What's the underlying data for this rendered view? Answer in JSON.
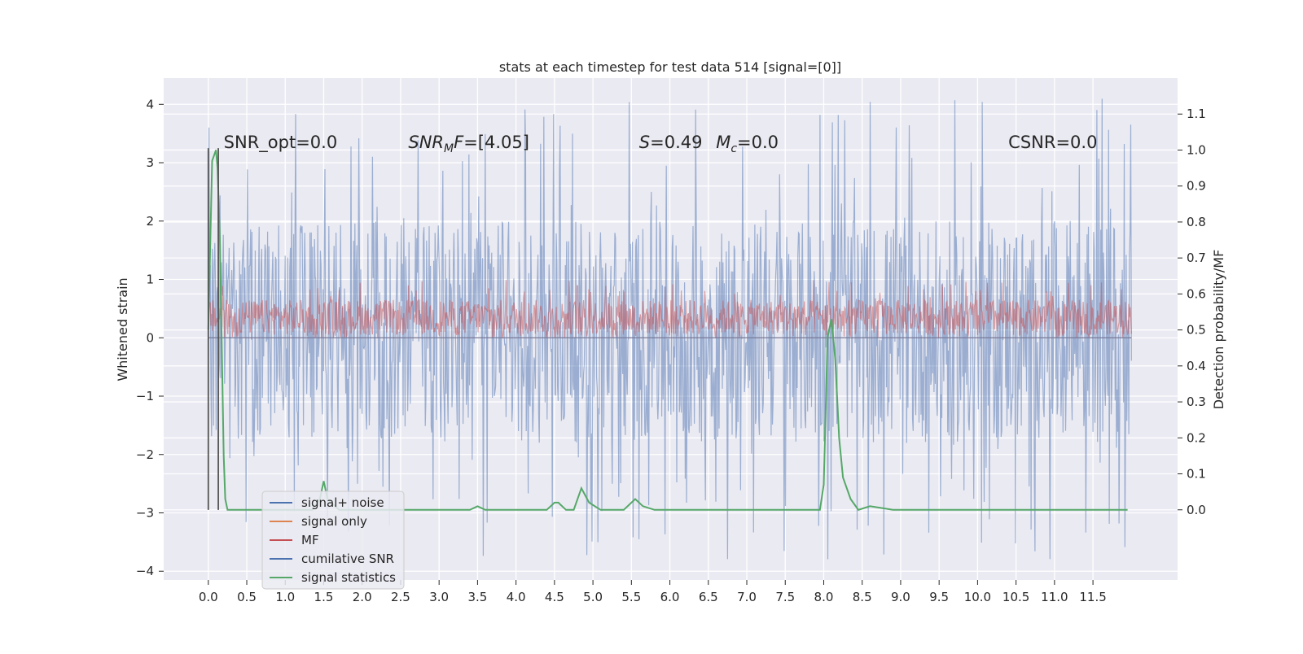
{
  "chart_data": {
    "type": "line",
    "title": "stats at each timestep for test data 514 [signal=[0]]",
    "xlabel": "",
    "ylabel": "Whitened strain",
    "ylabel_right": "Detection probability/MF",
    "xlim": [
      -0.58,
      12.6
    ],
    "ylim": [
      -4.15,
      4.45
    ],
    "ylim_right": [
      -0.195,
      1.2
    ],
    "xticks": [
      "0.0",
      "0.5",
      "1.0",
      "1.5",
      "2.0",
      "2.5",
      "3.0",
      "3.5",
      "4.0",
      "4.5",
      "5.0",
      "5.5",
      "6.0",
      "6.5",
      "7.0",
      "7.5",
      "8.0",
      "8.5",
      "9.0",
      "9.5",
      "10.0",
      "10.5",
      "11.0",
      "11.5"
    ],
    "yticks": [
      "4",
      "3",
      "2",
      "1",
      "0",
      "−1",
      "−2",
      "−3",
      "−4"
    ],
    "yticks_right": [
      "1.1",
      "1.0",
      "0.9",
      "0.8",
      "0.7",
      "0.6",
      "0.5",
      "0.4",
      "0.3",
      "0.2",
      "0.1",
      "0.0"
    ],
    "grid": true,
    "legend_position": "lower-left",
    "annotations": [
      {
        "id": "snr_opt",
        "text": "SNR_opt=0.0",
        "x": 0.2,
        "y": 3.25
      },
      {
        "id": "snr_mf",
        "text": "SNR_MF=[4.05]",
        "x": 2.6,
        "y": 3.25
      },
      {
        "id": "s_val",
        "text": "S=0.49",
        "x": 5.6,
        "y": 3.25
      },
      {
        "id": "mc_val",
        "text": "M_c=0.0",
        "x": 6.6,
        "y": 3.25
      },
      {
        "id": "csnr",
        "text": "CSNR=0.0",
        "x": 10.4,
        "y": 3.25
      }
    ],
    "series": [
      {
        "name": "signal+ noise",
        "color": "#4c72b0",
        "axis": "left",
        "x_range": [
          0.0,
          12.0
        ],
        "band": [
          -1.8,
          2.0
        ],
        "extremes": [
          -3.8,
          4.1
        ]
      },
      {
        "name": "signal only",
        "color": "#dd8452",
        "axis": "left",
        "x_range": [
          0.0,
          12.0
        ],
        "value": 0.0
      },
      {
        "name": "MF",
        "color": "#c44e52",
        "axis": "left",
        "x_range": [
          0.0,
          12.0
        ],
        "band": [
          0.05,
          0.65
        ],
        "extremes": [
          0.0,
          1.0
        ]
      },
      {
        "name": "cumilative SNR",
        "color": "#4c72b0",
        "axis": "left",
        "x_range": [
          0.0,
          12.0
        ],
        "value": 0.0
      },
      {
        "name": "signal statistics",
        "color": "#55a868",
        "axis": "right",
        "x": [
          0.0,
          0.05,
          0.1,
          0.12,
          0.15,
          0.2,
          0.22,
          0.25,
          0.3,
          1.35,
          1.45,
          1.5,
          1.55,
          1.7,
          3.4,
          3.5,
          3.6,
          4.4,
          4.5,
          4.55,
          4.65,
          4.75,
          4.85,
          4.95,
          5.1,
          5.4,
          5.55,
          5.65,
          5.8,
          7.95,
          8.0,
          8.05,
          8.1,
          8.15,
          8.2,
          8.25,
          8.35,
          8.45,
          8.6,
          8.9,
          11.95
        ],
        "y": [
          0.5,
          0.97,
          1.0,
          0.95,
          0.75,
          0.15,
          0.03,
          0.0,
          0.0,
          0.0,
          0.03,
          0.08,
          0.03,
          0.0,
          0.0,
          0.01,
          0.0,
          0.0,
          0.02,
          0.02,
          0.0,
          0.0,
          0.06,
          0.02,
          0.0,
          0.0,
          0.03,
          0.01,
          0.0,
          0.0,
          0.07,
          0.48,
          0.53,
          0.42,
          0.2,
          0.09,
          0.03,
          0.0,
          0.01,
          0.0,
          0.0
        ]
      }
    ],
    "marker_lines": [
      {
        "x": 0.0,
        "y": [
          -2.95,
          3.25
        ],
        "color": "#555555"
      },
      {
        "x": 0.13,
        "y": [
          -2.95,
          3.25
        ],
        "color": "#555555"
      }
    ]
  },
  "legend": {
    "items": [
      {
        "label": "signal+ noise",
        "color": "#4c72b0"
      },
      {
        "label": "signal only",
        "color": "#dd8452"
      },
      {
        "label": "MF",
        "color": "#c44e52"
      },
      {
        "label": "cumilative SNR",
        "color": "#4c72b0"
      },
      {
        "label": "signal statistics",
        "color": "#55a868"
      }
    ]
  },
  "theme": {
    "plot_background": "#eaeaf2",
    "grid_color": "#ffffff",
    "text_color": "#262626"
  }
}
